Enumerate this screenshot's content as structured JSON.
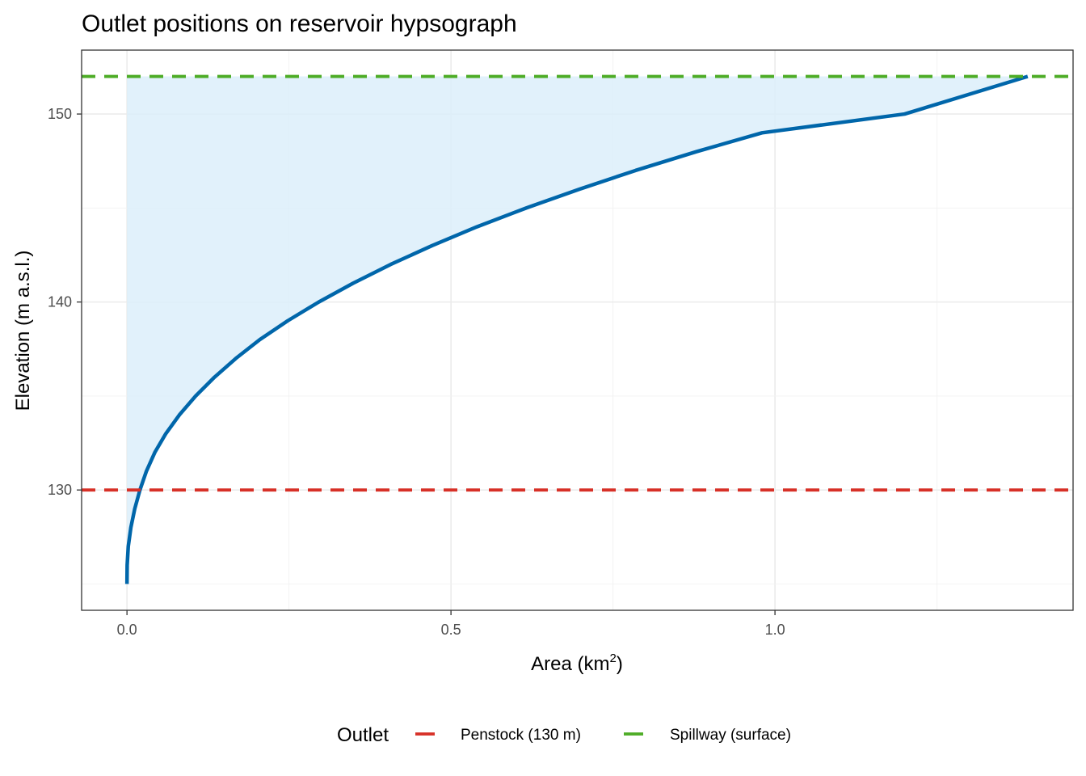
{
  "chart_data": {
    "type": "area",
    "title": "Outlet positions on reservoir hypsograph",
    "xlabel": "Area (km",
    "xlabel_sup": "2",
    "xlabel_end": ")",
    "ylabel": "Elevation (m a.s.l.)",
    "xlim": [
      -0.07,
      1.46
    ],
    "ylim": [
      123.6,
      153.4
    ],
    "x_ticks": [
      0.0,
      0.5,
      1.0
    ],
    "x_tick_labels": [
      "0.0",
      "0.5",
      "1.0"
    ],
    "y_ticks": [
      130,
      140,
      150
    ],
    "y_tick_labels": [
      "130",
      "140",
      "150"
    ],
    "grid": true,
    "series": [
      {
        "color": "#0066aa",
        "fill_color": "#dceefa",
        "points": [
          [
            0.0,
            125.0
          ],
          [
            0.0003,
            126.0
          ],
          [
            0.002,
            127.0
          ],
          [
            0.006,
            128.0
          ],
          [
            0.012,
            129.0
          ],
          [
            0.02,
            130.0
          ],
          [
            0.03,
            131.0
          ],
          [
            0.043,
            132.0
          ],
          [
            0.06,
            133.0
          ],
          [
            0.081,
            134.0
          ],
          [
            0.106,
            135.0
          ],
          [
            0.135,
            136.0
          ],
          [
            0.168,
            137.0
          ],
          [
            0.205,
            138.0
          ],
          [
            0.248,
            139.0
          ],
          [
            0.296,
            140.0
          ],
          [
            0.349,
            141.0
          ],
          [
            0.407,
            142.0
          ],
          [
            0.471,
            143.0
          ],
          [
            0.54,
            144.0
          ],
          [
            0.616,
            145.0
          ],
          [
            0.698,
            146.0
          ],
          [
            0.785,
            147.0
          ],
          [
            0.879,
            148.0
          ],
          [
            0.98,
            149.0
          ],
          [
            1.2,
            150.0
          ],
          [
            1.39,
            152.0
          ]
        ]
      }
    ],
    "reference_lines": [
      {
        "name": "Penstock (130 m)",
        "y": 130,
        "color": "#d73027"
      },
      {
        "name": "Spillway (surface)",
        "y": 152,
        "color": "#4dac26"
      }
    ],
    "legend": {
      "title": "Outlet",
      "placement": "bottom"
    }
  }
}
